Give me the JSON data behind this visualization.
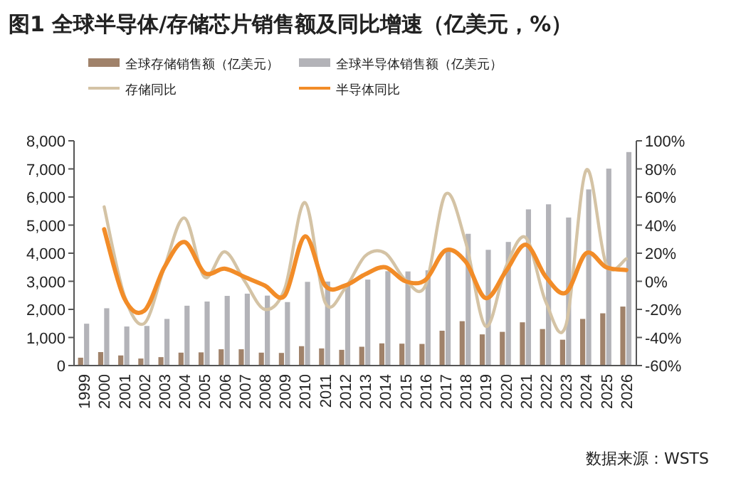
{
  "chart_data": {
    "type": "bar",
    "title": "图1  全球半导体/存储芯片销售额及同比增速（亿美元，%）",
    "annotations": [
      "数据来源：WSTS"
    ],
    "legend": "top",
    "grid": false,
    "categories": [
      "1999",
      "2000",
      "2001",
      "2002",
      "2003",
      "2004",
      "2005",
      "2006",
      "2007",
      "2008",
      "2009",
      "2010",
      "2011",
      "2012",
      "2013",
      "2014",
      "2015",
      "2016",
      "2017",
      "2018",
      "2019",
      "2020",
      "2021",
      "2022",
      "2023",
      "2024",
      "2025",
      "2026"
    ],
    "ylim": [
      0,
      8000
    ],
    "yticks": [
      {
        "value": 0,
        "label": "0"
      },
      {
        "value": 1000,
        "label": "1,000"
      },
      {
        "value": 2000,
        "label": "2,000"
      },
      {
        "value": 3000,
        "label": "3,000"
      },
      {
        "value": 4000,
        "label": "4,000"
      },
      {
        "value": 5000,
        "label": "5,000"
      },
      {
        "value": 6000,
        "label": "6,000"
      },
      {
        "value": 7000,
        "label": "7,000"
      },
      {
        "value": 8000,
        "label": "8,000"
      }
    ],
    "y2lim": [
      -60,
      100
    ],
    "y2ticks": [
      {
        "value": -60,
        "label": "-60%"
      },
      {
        "value": -40,
        "label": "-40%"
      },
      {
        "value": -20,
        "label": "-20%"
      },
      {
        "value": 0,
        "label": "0%"
      },
      {
        "value": 20,
        "label": "20%"
      },
      {
        "value": 40,
        "label": "40%"
      },
      {
        "value": 60,
        "label": "60%"
      },
      {
        "value": 80,
        "label": "80%"
      },
      {
        "value": 100,
        "label": "100%"
      }
    ],
    "series": [
      {
        "name": "全球存储销售额（亿美元）",
        "color": "#a0826a",
        "values": [
          280,
          480,
          360,
          250,
          300,
          460,
          470,
          580,
          580,
          460,
          450,
          690,
          610,
          560,
          670,
          790,
          780,
          770,
          1240,
          1580,
          1110,
          1200,
          1540,
          1300,
          920,
          1660,
          1860,
          2100
        ]
      },
      {
        "name": "全球半导体销售额（亿美元）",
        "color": "#b3b3b8",
        "values": [
          1490,
          2040,
          1390,
          1410,
          1660,
          2130,
          2280,
          2480,
          2560,
          2490,
          2260,
          2980,
          2990,
          2920,
          3060,
          3360,
          3350,
          3390,
          4120,
          4690,
          4120,
          4400,
          5560,
          5740,
          5270,
          6270,
          7010,
          7600
        ]
      },
      {
        "name": "存储同比",
        "type": "line",
        "axis": "y2",
        "color": "#d4c3a5",
        "values": [
          null,
          53,
          -10,
          -30,
          10,
          45,
          3,
          21,
          0,
          -20,
          -5,
          56,
          -15,
          -5,
          18,
          20,
          1,
          -3,
          62,
          28,
          -32,
          10,
          31,
          -15,
          -31,
          79,
          12,
          16
        ]
      },
      {
        "name": "半导体同比",
        "type": "line",
        "axis": "y2",
        "color": "#f28c28",
        "values": [
          null,
          37,
          -12,
          -21,
          10,
          28,
          6,
          9,
          3,
          -3,
          -10,
          32,
          -3,
          -3,
          5,
          10,
          0,
          1,
          22,
          14,
          -12,
          7,
          26,
          3,
          -8,
          20,
          10,
          8
        ]
      }
    ]
  }
}
